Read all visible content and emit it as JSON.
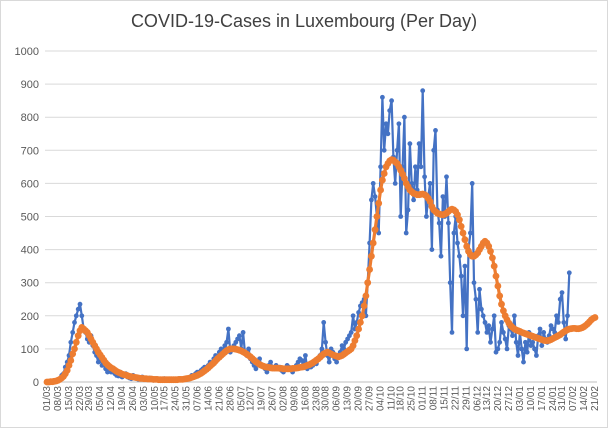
{
  "chart_data": {
    "type": "line",
    "title": "COVID-19-Cases in Luxembourg (Per Day)",
    "xlabel": "",
    "ylabel": "",
    "ylim": [
      0,
      1000
    ],
    "yticks": [
      0,
      100,
      200,
      300,
      400,
      500,
      600,
      700,
      800,
      900,
      1000
    ],
    "grid": true,
    "legend": "none",
    "colors": {
      "daily": "#4472c4",
      "average": "#ed7d31",
      "grid": "#d9d9d9",
      "axis": "#bfbfbf"
    },
    "x_tick_labels": [
      "01/03",
      "08/03",
      "15/03",
      "22/03",
      "29/03",
      "05/04",
      "12/04",
      "19/04",
      "26/04",
      "03/05",
      "10/05",
      "17/05",
      "24/05",
      "31/05",
      "07/06",
      "14/06",
      "21/06",
      "28/06",
      "05/07",
      "12/07",
      "19/07",
      "26/07",
      "02/08",
      "09/08",
      "16/08",
      "23/08",
      "30/08",
      "06/09",
      "13/09",
      "20/09",
      "27/09",
      "04/10",
      "11/10",
      "18/10",
      "25/10",
      "01/11",
      "08/11",
      "15/11",
      "22/11",
      "29/11",
      "06/12",
      "13/12",
      "20/12",
      "27/12",
      "03/01",
      "10/01",
      "17/01",
      "24/01",
      "31/01",
      "07/02",
      "14/02",
      "21/02"
    ],
    "series": [
      {
        "values": [
          0,
          0,
          2,
          0,
          3,
          5,
          8,
          10,
          20,
          25,
          45,
          60,
          80,
          120,
          150,
          180,
          200,
          220,
          235,
          200,
          160,
          150,
          130,
          120,
          140,
          110,
          90,
          80,
          60,
          75,
          50,
          60,
          40,
          30,
          35,
          30,
          40,
          25,
          20,
          18,
          30,
          15,
          20,
          25,
          15,
          12,
          10,
          20,
          15,
          10,
          8,
          12,
          15,
          10,
          8,
          10,
          12,
          8,
          5,
          8,
          10,
          6,
          5,
          7,
          10,
          8,
          5,
          6,
          8,
          6,
          5,
          8,
          10,
          8,
          6,
          9,
          12,
          10,
          15,
          20,
          18,
          25,
          30,
          25,
          35,
          40,
          45,
          40,
          50,
          60,
          55,
          70,
          80,
          75,
          90,
          100,
          95,
          110,
          120,
          160,
          90,
          100,
          110,
          120,
          130,
          140,
          100,
          150,
          90,
          80,
          100,
          70,
          60,
          50,
          40,
          60,
          70,
          50,
          45,
          40,
          30,
          50,
          60,
          45,
          40,
          50,
          40,
          45,
          35,
          30,
          40,
          50,
          45,
          40,
          30,
          40,
          50,
          60,
          70,
          65,
          55,
          80,
          40,
          50,
          45,
          50,
          60,
          55,
          70,
          80,
          100,
          180,
          120,
          80,
          60,
          100,
          90,
          70,
          60,
          80,
          90,
          110,
          100,
          120,
          130,
          140,
          150,
          200,
          160,
          180,
          210,
          230,
          240,
          250,
          200,
          300,
          420,
          550,
          600,
          560,
          500,
          450,
          650,
          860,
          700,
          780,
          750,
          820,
          850,
          680,
          600,
          700,
          780,
          500,
          650,
          800,
          450,
          520,
          720,
          600,
          550,
          650,
          580,
          720,
          650,
          880,
          620,
          500,
          560,
          600,
          400,
          700,
          760,
          520,
          480,
          380,
          560,
          500,
          620,
          480,
          300,
          150,
          450,
          500,
          420,
          380,
          320,
          200,
          350,
          100,
          400,
          450,
          600,
          300,
          250,
          150,
          280,
          220,
          200,
          180,
          150,
          170,
          120,
          160,
          200,
          90,
          100,
          120,
          180,
          150,
          130,
          100,
          170,
          160,
          140,
          200,
          120,
          80,
          150,
          100,
          60,
          120,
          90,
          150,
          110,
          120,
          100,
          80,
          140,
          160,
          110,
          150,
          130,
          120,
          140,
          170,
          160,
          150,
          200,
          180,
          250,
          270,
          180,
          130,
          200,
          330
        ]
      },
      {
        "values": [
          0,
          0,
          1,
          1,
          2,
          3,
          5,
          8,
          12,
          17,
          25,
          35,
          50,
          65,
          85,
          100,
          120,
          140,
          155,
          165,
          160,
          155,
          150,
          140,
          130,
          120,
          110,
          100,
          90,
          82,
          74,
          66,
          58,
          52,
          47,
          43,
          40,
          36,
          32,
          29,
          27,
          24,
          22,
          21,
          19,
          17,
          16,
          15,
          14,
          13,
          12,
          11,
          11,
          10,
          10,
          9,
          9,
          9,
          8,
          8,
          8,
          7,
          7,
          7,
          7,
          7,
          7,
          7,
          7,
          7,
          7,
          7,
          8,
          8,
          8,
          9,
          10,
          11,
          12,
          14,
          16,
          18,
          20,
          23,
          26,
          30,
          34,
          38,
          43,
          48,
          53,
          58,
          64,
          70,
          75,
          80,
          85,
          90,
          95,
          98,
          100,
          100,
          100,
          99,
          98,
          96,
          94,
          91,
          88,
          84,
          80,
          76,
          71,
          66,
          61,
          57,
          53,
          50,
          48,
          46,
          45,
          44,
          43,
          42,
          42,
          42,
          42,
          41,
          41,
          40,
          40,
          40,
          40,
          40,
          41,
          41,
          42,
          43,
          44,
          45,
          46,
          48,
          50,
          52,
          55,
          58,
          62,
          66,
          70,
          75,
          80,
          85,
          88,
          90,
          88,
          85,
          82,
          80,
          78,
          76,
          78,
          80,
          84,
          88,
          92,
          96,
          100,
          110,
          125,
          140,
          160,
          180,
          200,
          230,
          260,
          300,
          340,
          380,
          420,
          460,
          500,
          540,
          580,
          610,
          630,
          650,
          660,
          668,
          672,
          670,
          665,
          660,
          650,
          640,
          628,
          615,
          600,
          590,
          580,
          575,
          570,
          568,
          566,
          566,
          567,
          568,
          566,
          562,
          555,
          545,
          530,
          520,
          515,
          510,
          508,
          506,
          505,
          507,
          510,
          515,
          520,
          522,
          520,
          515,
          505,
          490,
          470,
          450,
          430,
          410,
          395,
          385,
          380,
          380,
          384,
          390,
          400,
          410,
          420,
          425,
          420,
          410,
          395,
          375,
          350,
          320,
          290,
          260,
          235,
          215,
          200,
          188,
          178,
          170,
          165,
          160,
          157,
          155,
          153,
          150,
          148,
          146,
          144,
          142,
          140,
          138,
          136,
          134,
          132,
          130,
          128,
          126,
          125,
          125,
          126,
          128,
          131,
          134,
          137,
          140,
          143,
          147,
          151,
          155,
          158,
          160,
          161,
          162,
          162,
          161,
          161,
          162,
          164,
          167,
          171,
          176,
          182,
          188,
          192,
          195
        ]
      }
    ]
  }
}
